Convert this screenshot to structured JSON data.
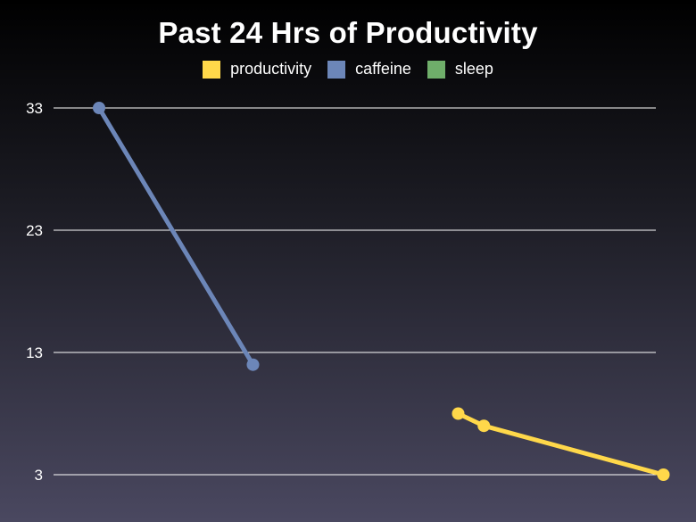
{
  "chart_data": {
    "type": "line",
    "title": "Past 24 Hrs of Productivity",
    "xlabel": "",
    "ylabel": "",
    "y_ticks": [
      3,
      13,
      23,
      33
    ],
    "ylim": [
      3,
      33
    ],
    "xlim": [
      0,
      24
    ],
    "grid": true,
    "legend_position": "top-center",
    "series": [
      {
        "name": "productivity",
        "color": "#ffd84a",
        "points": [
          [
            14.8,
            8
          ],
          [
            15.8,
            7
          ],
          [
            22.8,
            3
          ]
        ]
      },
      {
        "name": "caffeine",
        "color": "#6c86b8",
        "points": [
          [
            0.8,
            33
          ],
          [
            6.8,
            12
          ]
        ]
      },
      {
        "name": "sleep",
        "color": "#6fae6a",
        "points": []
      }
    ]
  }
}
